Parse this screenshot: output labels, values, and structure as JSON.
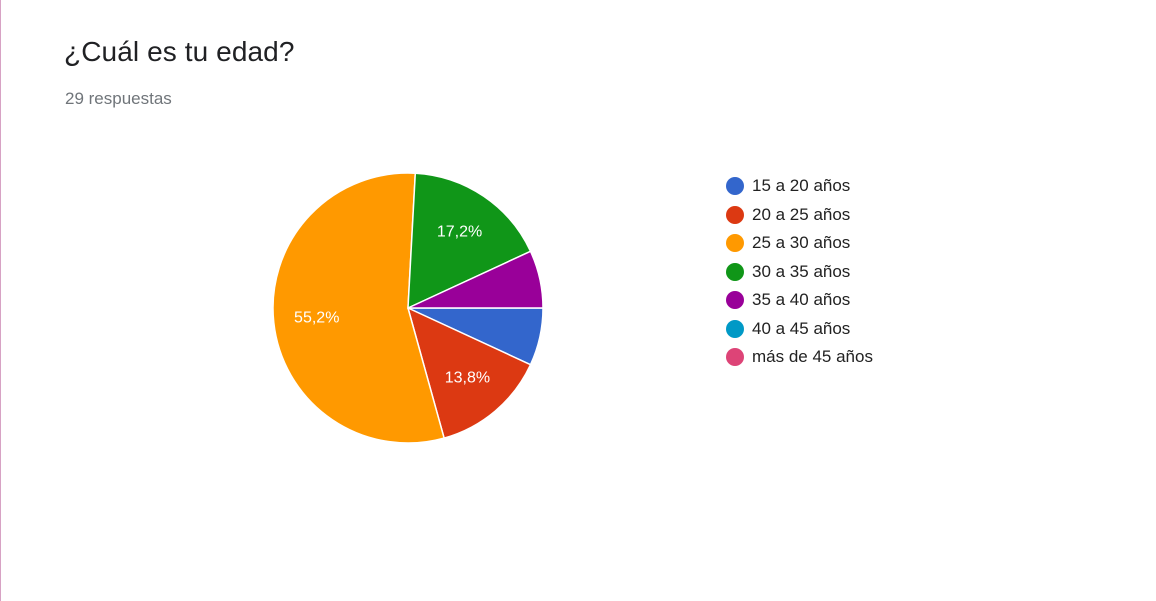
{
  "question": {
    "title": "¿Cuál es tu edad?",
    "responses": "29 respuestas"
  },
  "colors": {
    "blue": "#3366cc",
    "red": "#dc3912",
    "orange": "#ff9900",
    "green": "#109618",
    "purple": "#990099",
    "cyan": "#0099c6",
    "pink": "#dd4477"
  },
  "chart_data": {
    "type": "pie",
    "title": "¿Cuál es tu edad?",
    "categories": [
      "15 a 20 años",
      "20 a 25 años",
      "25 a 30 años",
      "30 a 35 años",
      "35 a 40 años",
      "40 a 45 años",
      "más de 45 años"
    ],
    "values": [
      2,
      4,
      16,
      5,
      2,
      0,
      0
    ],
    "percent_labels": [
      "6,9%",
      "13,8%",
      "55,2%",
      "17,2%",
      "6,9%",
      "0%",
      "0%"
    ],
    "shown_labels": [
      false,
      true,
      true,
      true,
      false,
      false,
      false
    ],
    "colors": [
      "#3366cc",
      "#dc3912",
      "#ff9900",
      "#109618",
      "#990099",
      "#0099c6",
      "#dd4477"
    ],
    "legend_position": "right",
    "start_direction": "east",
    "direction": "clockwise"
  }
}
